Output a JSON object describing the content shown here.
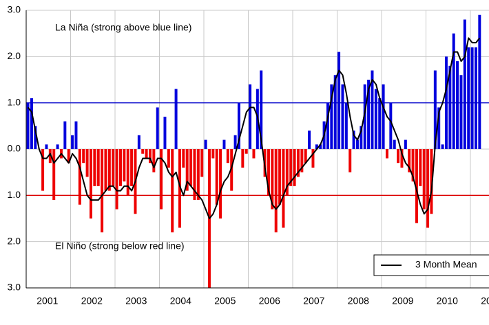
{
  "chart_data": {
    "type": "bar",
    "annotations": [
      "La Niña (strong above blue line)",
      "El Niño (strong below red line)"
    ],
    "categories": [
      "2001",
      null,
      null,
      null,
      null,
      null,
      null,
      null,
      null,
      null,
      null,
      null,
      "2002",
      null,
      null,
      null,
      null,
      null,
      null,
      null,
      null,
      null,
      null,
      null,
      "2003",
      null,
      null,
      null,
      null,
      null,
      null,
      null,
      null,
      null,
      null,
      null,
      "2004",
      null,
      null,
      null,
      null,
      null,
      null,
      null,
      null,
      null,
      null,
      null,
      "2005",
      null,
      null,
      null,
      null,
      null,
      null,
      null,
      null,
      null,
      null,
      null,
      "2006",
      null,
      null,
      null,
      null,
      null,
      null,
      null,
      null,
      null,
      null,
      null,
      "2007",
      null,
      null,
      null,
      null,
      null,
      null,
      null,
      null,
      null,
      null,
      null,
      "2008",
      null,
      null,
      null,
      null,
      null,
      null,
      null,
      null,
      null,
      null,
      null,
      "2009",
      null,
      null,
      null,
      null,
      null,
      null,
      null,
      null,
      null,
      null,
      null,
      "2010",
      null,
      null,
      null,
      null,
      null,
      null,
      null,
      null,
      null,
      null,
      null,
      "20",
      null,
      null
    ],
    "values": [
      1.0,
      1.1,
      0.5,
      0.0,
      -0.9,
      0.1,
      -0.3,
      -1.1,
      0.1,
      -0.2,
      0.6,
      -0.3,
      0.3,
      0.6,
      -1.2,
      -0.3,
      -0.6,
      -1.5,
      -0.8,
      -0.8,
      -1.8,
      -0.9,
      -0.9,
      -0.8,
      -1.3,
      -0.8,
      -0.7,
      -1.0,
      -0.8,
      -1.4,
      0.3,
      -0.1,
      -0.2,
      -0.3,
      -0.5,
      0.9,
      -1.3,
      0.7,
      -0.4,
      -1.8,
      1.3,
      -1.7,
      -0.4,
      -0.9,
      -0.8,
      -1.1,
      -1.1,
      -0.6,
      0.2,
      -3.0,
      -0.2,
      -1.2,
      -1.5,
      0.2,
      -0.3,
      -0.9,
      0.3,
      1.0,
      -0.4,
      -0.1,
      1.4,
      -0.2,
      1.3,
      1.7,
      -0.6,
      -1.0,
      -1.3,
      -1.8,
      -1.2,
      -1.7,
      -1.0,
      -0.8,
      -0.8,
      -0.6,
      -0.5,
      -0.3,
      0.4,
      -0.4,
      0.1,
      0.1,
      0.6,
      1.0,
      1.4,
      1.6,
      2.1,
      1.4,
      1.0,
      -0.5,
      0.4,
      0.2,
      0.5,
      1.4,
      1.5,
      1.7,
      1.3,
      1.1,
      1.4,
      -0.2,
      1.0,
      0.2,
      -0.3,
      -0.4,
      0.2,
      -0.5,
      -0.7,
      -1.6,
      -0.8,
      -1.3,
      -1.7,
      -1.4,
      1.7,
      0.9,
      0.1,
      2.0,
      1.8,
      2.5,
      1.9,
      1.6,
      2.8,
      2.2,
      2.2,
      2.2,
      2.9
    ],
    "positive_color": "#0000dd",
    "negative_color": "#ee0000",
    "series": [
      {
        "name": "3 Month Mean",
        "color": "#000000",
        "values": [
          0.9,
          0.8,
          0.4,
          0.0,
          -0.2,
          -0.2,
          -0.1,
          -0.3,
          -0.2,
          -0.1,
          -0.2,
          -0.3,
          -0.1,
          -0.2,
          -0.4,
          -0.7,
          -1.0,
          -1.1,
          -1.1,
          -1.1,
          -1.0,
          -0.9,
          -0.8,
          -0.8,
          -0.9,
          -0.9,
          -0.8,
          -0.8,
          -0.9,
          -0.7,
          -0.4,
          -0.2,
          -0.2,
          -0.2,
          -0.4,
          -0.2,
          -0.2,
          -0.3,
          -0.5,
          -0.6,
          -0.5,
          -0.8,
          -1.0,
          -0.7,
          -0.8,
          -0.9,
          -1.0,
          -1.1,
          -1.3,
          -1.5,
          -1.4,
          -1.2,
          -0.9,
          -0.7,
          -0.6,
          -0.4,
          -0.1,
          0.2,
          0.5,
          0.8,
          0.9,
          0.9,
          0.7,
          0.2,
          -0.4,
          -0.9,
          -1.2,
          -1.3,
          -1.2,
          -1.0,
          -0.8,
          -0.7,
          -0.6,
          -0.5,
          -0.4,
          -0.3,
          -0.2,
          -0.1,
          0.0,
          0.1,
          0.3,
          0.7,
          1.1,
          1.5,
          1.7,
          1.6,
          1.2,
          0.7,
          0.3,
          0.2,
          0.4,
          0.8,
          1.3,
          1.5,
          1.4,
          1.1,
          0.9,
          0.7,
          0.6,
          0.4,
          0.2,
          -0.1,
          -0.3,
          -0.4,
          -0.6,
          -0.9,
          -1.2,
          -1.4,
          -1.3,
          -0.9,
          0.1,
          0.8,
          1.0,
          1.3,
          1.7,
          2.1,
          2.1,
          1.9,
          2.0,
          2.4,
          2.3,
          2.3,
          2.4
        ]
      }
    ],
    "reference_lines": [
      {
        "value": 1,
        "color": "#0000cc"
      },
      {
        "value": -1,
        "color": "#dd0000"
      }
    ],
    "ylim": [
      -3,
      3
    ],
    "yticks": [
      {
        "value": -3,
        "label": "3.0"
      },
      {
        "value": -2,
        "label": "2.0"
      },
      {
        "value": -1,
        "label": "1.0"
      },
      {
        "value": 0,
        "label": "0.0"
      },
      {
        "value": 1,
        "label": "1.0"
      },
      {
        "value": 2,
        "label": "2.0"
      },
      {
        "value": 3,
        "label": "3.0"
      }
    ],
    "grid": true,
    "legend": "lower right"
  }
}
